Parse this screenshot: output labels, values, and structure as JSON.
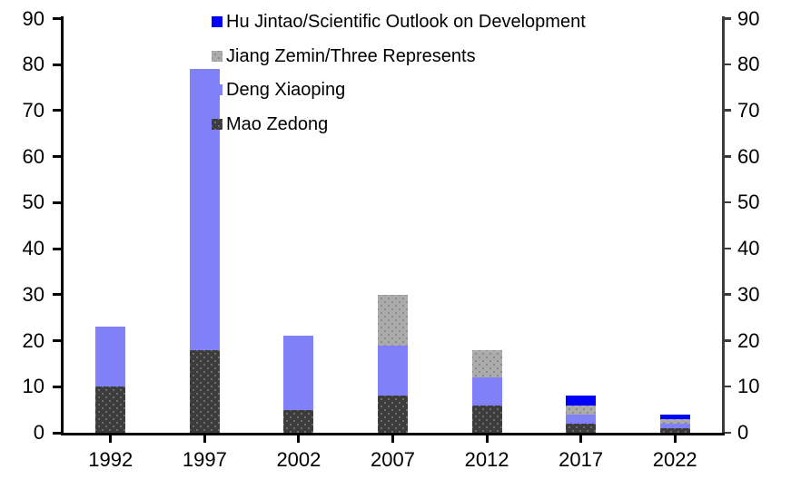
{
  "chart_data": {
    "type": "bar",
    "stacked": true,
    "grid": false,
    "background": "#FFFFFF",
    "text_color": "#000000",
    "categories": [
      "1992",
      "1997",
      "2002",
      "2007",
      "2012",
      "2017",
      "2022"
    ],
    "series": [
      {
        "name": "Mao Zedong",
        "color": "#3D3D3D",
        "pattern": "dots",
        "dot_color": "#6B6B6B",
        "values": [
          10,
          18,
          5,
          8,
          6,
          2,
          1
        ]
      },
      {
        "name": "Deng Xiaoping",
        "color": "#8080F8",
        "pattern": "solid",
        "dot_color": "",
        "values": [
          13,
          61,
          16,
          11,
          6,
          2,
          1
        ]
      },
      {
        "name": "Jiang Zemin/Three Represents",
        "color": "#ABABAB",
        "pattern": "dots",
        "dot_color": "#8C8C8C",
        "values": [
          0,
          0,
          0,
          11,
          6,
          2,
          1
        ]
      },
      {
        "name": "Hu Jintao/Scientific Outlook on Development",
        "color": "#0000FF",
        "pattern": "solid",
        "dot_color": "",
        "values": [
          0,
          0,
          0,
          0,
          0,
          2,
          1
        ]
      }
    ],
    "totals": [
      23,
      79,
      21,
      30,
      18,
      8,
      4
    ],
    "legend": {
      "position": "top-overlay",
      "entries_top_to_bottom": [
        "Hu Jintao/Scientific Outlook on Development",
        "Jiang Zemin/Three Represents",
        "Deng Xiaoping",
        "Mao Zedong"
      ]
    },
    "left_axis": {
      "min": 0,
      "max": 90,
      "step": 10,
      "tick_labels": [
        "0",
        "10",
        "20",
        "30",
        "40",
        "50",
        "60",
        "70",
        "80",
        "90"
      ],
      "color": "#000000"
    },
    "right_axis": {
      "min": 0,
      "max": 90,
      "step": 10,
      "tick_labels": [
        "0",
        "10",
        "20",
        "30",
        "40",
        "50",
        "60",
        "70",
        "80",
        "90"
      ],
      "color": "#3D3D3D"
    },
    "x_axis": {
      "color": "#000000"
    }
  }
}
